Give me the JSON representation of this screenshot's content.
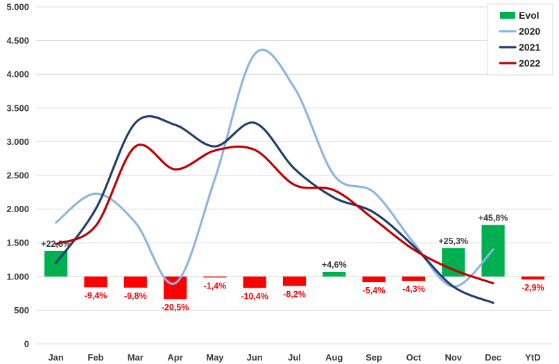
{
  "chart_data": {
    "type": "bar",
    "categories": [
      "Jan",
      "Feb",
      "Mar",
      "Apr",
      "May",
      "Jun",
      "Jul",
      "Aug",
      "Sep",
      "Oct",
      "Nov",
      "Dec",
      "YtD"
    ],
    "ylim": [
      0,
      5000
    ],
    "yticks": [
      0,
      500,
      1000,
      1500,
      2000,
      2500,
      3000,
      3500,
      4000,
      4500,
      5000
    ],
    "ytick_labels": [
      "0",
      "500",
      "1.000",
      "1.500",
      "2.000",
      "2.500",
      "3.000",
      "3.500",
      "4.000",
      "4.500",
      "5.000"
    ],
    "grid": true,
    "legend_position": "top-right",
    "bar_baseline": 1000,
    "bars": {
      "name": "Evol",
      "color_positive": "#00b050",
      "color_negative": "#ff0000",
      "values": [
        1380,
        840,
        835,
        665,
        985,
        830,
        860,
        1070,
        915,
        935,
        1420,
        1765,
        955
      ],
      "labels": [
        "+22,8%",
        "-9,4%",
        "-9,8%",
        "-20,5%",
        "-1,4%",
        "-10,4%",
        "-8,2%",
        "+4,6%",
        "-5,4%",
        "-4,3%",
        "+25,3%",
        "+45,8%",
        "-2,9%"
      ]
    },
    "series": [
      {
        "name": "2020",
        "color": "#8eb4e3",
        "values": [
          1800,
          2230,
          1800,
          900,
          2450,
          4300,
          3800,
          2500,
          2250,
          1500,
          850,
          1400,
          null
        ]
      },
      {
        "name": "2021",
        "color": "#1f3f6e",
        "values": [
          1200,
          2000,
          3280,
          3250,
          2930,
          3280,
          2600,
          2170,
          1950,
          1450,
          850,
          610,
          null
        ]
      },
      {
        "name": "2022",
        "color": "#c00000",
        "values": [
          1480,
          1750,
          2930,
          2590,
          2870,
          2880,
          2360,
          2280,
          1850,
          1400,
          1100,
          900,
          null
        ]
      }
    ]
  }
}
